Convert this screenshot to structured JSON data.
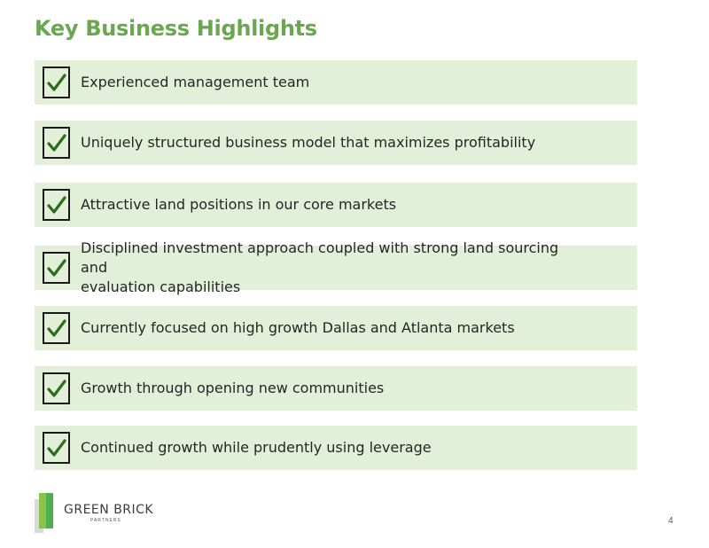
{
  "title": "Key Business Highlights",
  "icons": {
    "check": "checkmark-icon"
  },
  "colors": {
    "title": "#6aa84f",
    "row_bg": "#e2efd9",
    "check": "#2e6b1f"
  },
  "highlights": [
    {
      "line1": "Experienced management team",
      "line2": ""
    },
    {
      "line1": "Uniquely structured business model that maximizes profitability",
      "line2": ""
    },
    {
      "line1": "Attractive land positions in our core markets",
      "line2": ""
    },
    {
      "line1": "Disciplined investment approach coupled with strong land sourcing and",
      "line2": "evaluation capabilities"
    },
    {
      "line1": "Currently focused on high growth Dallas and Atlanta markets",
      "line2": ""
    },
    {
      "line1": "Growth through opening new communities",
      "line2": ""
    },
    {
      "line1": "Continued growth while prudently using leverage",
      "line2": ""
    }
  ],
  "logo": {
    "line1": "GREEN BRICK",
    "line2": "PARTNERS"
  },
  "page_number": "4"
}
